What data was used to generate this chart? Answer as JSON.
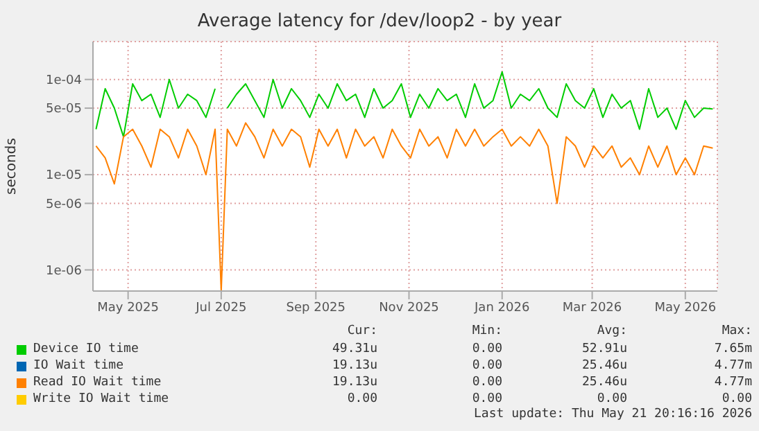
{
  "chart_data": {
    "type": "line",
    "title": "Average latency for /dev/loop2 - by year",
    "ylabel": "seconds",
    "log": "y",
    "grid": true,
    "legend": "bottom",
    "marker": "none",
    "line_style": "solid",
    "x": [
      "2025-04-10",
      "2025-04-16",
      "2025-04-22",
      "2025-04-28",
      "2025-05-04",
      "2025-05-10",
      "2025-05-16",
      "2025-05-22",
      "2025-05-28",
      "2025-06-03",
      "2025-06-09",
      "2025-06-15",
      "2025-06-21",
      "2025-06-27",
      "2025-07-01",
      "2025-07-05",
      "2025-07-11",
      "2025-07-17",
      "2025-07-23",
      "2025-07-29",
      "2025-08-04",
      "2025-08-10",
      "2025-08-16",
      "2025-08-22",
      "2025-08-28",
      "2025-09-03",
      "2025-09-09",
      "2025-09-15",
      "2025-09-21",
      "2025-09-27",
      "2025-10-03",
      "2025-10-09",
      "2025-10-15",
      "2025-10-21",
      "2025-10-27",
      "2025-11-02",
      "2025-11-08",
      "2025-11-14",
      "2025-11-20",
      "2025-11-26",
      "2025-12-02",
      "2025-12-08",
      "2025-12-14",
      "2025-12-20",
      "2025-12-26",
      "2026-01-01",
      "2026-01-07",
      "2026-01-13",
      "2026-01-19",
      "2026-01-25",
      "2026-01-31",
      "2026-02-06",
      "2026-02-12",
      "2026-02-18",
      "2026-02-24",
      "2026-03-02",
      "2026-03-08",
      "2026-03-14",
      "2026-03-20",
      "2026-03-26",
      "2026-04-01",
      "2026-04-07",
      "2026-04-13",
      "2026-04-19",
      "2026-04-25",
      "2026-05-01",
      "2026-05-07",
      "2026-05-13",
      "2026-05-19"
    ],
    "series": [
      {
        "name": "Device IO time",
        "color": "#00cc00",
        "values": [
          3e-05,
          8e-05,
          5e-05,
          2.5e-05,
          9e-05,
          6e-05,
          7e-05,
          4e-05,
          0.0001,
          5e-05,
          7e-05,
          6e-05,
          4e-05,
          8e-05,
          null,
          5e-05,
          7e-05,
          9e-05,
          6e-05,
          4e-05,
          0.0001,
          5e-05,
          8e-05,
          6e-05,
          4e-05,
          7e-05,
          5e-05,
          9e-05,
          6e-05,
          7e-05,
          4e-05,
          8e-05,
          5e-05,
          6e-05,
          9e-05,
          4e-05,
          7e-05,
          5e-05,
          8e-05,
          6e-05,
          7e-05,
          4e-05,
          9e-05,
          5e-05,
          6e-05,
          0.00012,
          5e-05,
          7e-05,
          6e-05,
          8e-05,
          5e-05,
          4e-05,
          9e-05,
          6e-05,
          5e-05,
          8e-05,
          4e-05,
          7e-05,
          5e-05,
          6e-05,
          3e-05,
          8e-05,
          4e-05,
          5e-05,
          3e-05,
          6e-05,
          4e-05,
          5e-05,
          4.9e-05
        ]
      },
      {
        "name": "IO Wait time",
        "color": "#0066b3",
        "values": [
          null,
          null,
          null,
          null,
          null,
          null,
          null,
          null,
          null,
          null,
          null,
          null,
          null,
          null,
          null,
          null,
          null,
          null,
          null,
          null,
          null,
          null,
          null,
          null,
          null,
          null,
          null,
          null,
          null,
          null,
          null,
          null,
          null,
          null,
          null,
          null,
          null,
          null,
          null,
          null,
          null,
          null,
          null,
          null,
          null,
          null,
          null,
          null,
          null,
          null,
          null,
          null,
          null,
          null,
          null,
          null,
          null,
          null,
          null,
          null,
          null,
          null,
          null,
          null,
          null,
          null,
          null,
          null,
          null
        ]
      },
      {
        "name": "Read IO Wait time",
        "color": "#ff8000",
        "values": [
          2e-05,
          1.5e-05,
          8e-06,
          2.5e-05,
          3e-05,
          2e-05,
          1.2e-05,
          3e-05,
          2.5e-05,
          1.5e-05,
          3e-05,
          2e-05,
          1e-05,
          3e-05,
          6e-07,
          3e-05,
          2e-05,
          3.5e-05,
          2.5e-05,
          1.5e-05,
          3e-05,
          2e-05,
          3e-05,
          2.5e-05,
          1.2e-05,
          3e-05,
          2e-05,
          3e-05,
          1.5e-05,
          3e-05,
          2e-05,
          2.5e-05,
          1.5e-05,
          3e-05,
          2e-05,
          1.5e-05,
          3e-05,
          2e-05,
          2.5e-05,
          1.5e-05,
          3e-05,
          2e-05,
          3e-05,
          2e-05,
          2.5e-05,
          3e-05,
          2e-05,
          2.5e-05,
          2e-05,
          3e-05,
          2e-05,
          5e-06,
          2.5e-05,
          2e-05,
          1.2e-05,
          2e-05,
          1.5e-05,
          2e-05,
          1.2e-05,
          1.5e-05,
          1e-05,
          2e-05,
          1.2e-05,
          2e-05,
          1e-05,
          1.5e-05,
          1e-05,
          2e-05,
          1.9e-05
        ]
      },
      {
        "name": "Write IO Wait time",
        "color": "#ffcc00",
        "values": [
          null,
          null,
          null,
          null,
          null,
          null,
          null,
          null,
          null,
          null,
          null,
          null,
          null,
          null,
          null,
          null,
          null,
          null,
          null,
          null,
          null,
          null,
          null,
          null,
          null,
          null,
          null,
          null,
          null,
          null,
          null,
          null,
          null,
          null,
          null,
          null,
          null,
          null,
          null,
          null,
          null,
          null,
          null,
          null,
          null,
          null,
          null,
          null,
          null,
          null,
          null,
          null,
          null,
          null,
          null,
          null,
          null,
          null,
          null,
          null,
          null,
          null,
          null,
          null,
          null,
          null,
          null,
          null,
          null
        ]
      }
    ],
    "xlim": [
      "2025-04-08",
      "2026-05-22"
    ],
    "xticks": [
      {
        "value": "2025-05-01",
        "label": "May 2025"
      },
      {
        "value": "2025-07-01",
        "label": "Jul 2025"
      },
      {
        "value": "2025-09-01",
        "label": "Sep 2025"
      },
      {
        "value": "2025-11-01",
        "label": "Nov 2025"
      },
      {
        "value": "2026-01-01",
        "label": "Jan 2026"
      },
      {
        "value": "2026-03-01",
        "label": "Mar 2026"
      },
      {
        "value": "2026-05-01",
        "label": "May 2026"
      }
    ],
    "ylim": [
      6e-07,
      0.00025
    ],
    "yticks": [
      {
        "value": 1e-06,
        "label": "1e-06"
      },
      {
        "value": 5e-06,
        "label": "5e-06"
      },
      {
        "value": 1e-05,
        "label": "1e-05"
      },
      {
        "value": 5e-05,
        "label": "5e-05"
      },
      {
        "value": 0.0001,
        "label": "1e-04"
      }
    ],
    "annotations": [
      "Cur:",
      "Min:",
      "Avg:",
      "Max:",
      "49.31u",
      "0.00",
      "52.91u",
      "7.65m",
      "19.13u",
      "0.00",
      "25.46u",
      "4.77m",
      "19.13u",
      "0.00",
      "25.46u",
      "4.77m",
      "0.00",
      "0.00",
      "0.00",
      "0.00",
      "Last update: Thu May 21 20:16:16 2026"
    ]
  }
}
